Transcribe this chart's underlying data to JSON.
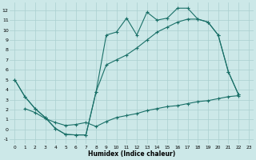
{
  "xlabel": "Humidex (Indice chaleur)",
  "bg_color": "#cce8e8",
  "line_color": "#1a7068",
  "grid_color": "#aacfcf",
  "xlim": [
    -0.5,
    23.5
  ],
  "ylim": [
    -1.5,
    12.8
  ],
  "xticks": [
    0,
    1,
    2,
    3,
    4,
    5,
    6,
    7,
    8,
    9,
    10,
    11,
    12,
    13,
    14,
    15,
    16,
    17,
    18,
    19,
    20,
    21,
    22,
    23
  ],
  "yticks": [
    -1,
    0,
    1,
    2,
    3,
    4,
    5,
    6,
    7,
    8,
    9,
    10,
    11,
    12
  ],
  "curve1_x": [
    0,
    1,
    2,
    3,
    4,
    5,
    6,
    7,
    8,
    9,
    10,
    11,
    12,
    13,
    14,
    15,
    16,
    17,
    18,
    19,
    20,
    21,
    22
  ],
  "curve1_y": [
    5.0,
    3.3,
    2.1,
    1.2,
    0.1,
    -0.5,
    -0.55,
    -0.55,
    3.8,
    9.5,
    9.8,
    11.2,
    9.5,
    11.8,
    11.0,
    11.2,
    12.2,
    12.2,
    11.1,
    10.8,
    9.5,
    5.8,
    3.5
  ],
  "curve2_x": [
    0,
    1,
    2,
    3,
    4,
    5,
    6,
    7,
    8,
    9,
    10,
    11,
    12,
    13,
    14,
    15,
    16,
    17,
    18,
    19,
    20,
    21,
    22
  ],
  "curve2_y": [
    5.0,
    3.3,
    2.1,
    1.2,
    0.1,
    -0.5,
    -0.55,
    -0.55,
    3.8,
    6.5,
    7.0,
    7.5,
    8.2,
    9.0,
    9.8,
    10.3,
    10.8,
    11.1,
    11.1,
    10.8,
    9.5,
    5.8,
    3.5
  ],
  "curve3_x": [
    1,
    2,
    3,
    4,
    5,
    6,
    7,
    8,
    9,
    10,
    11,
    12,
    13,
    14,
    15,
    16,
    17,
    18,
    19,
    20,
    21,
    22
  ],
  "curve3_y": [
    2.1,
    1.7,
    1.1,
    0.7,
    0.4,
    0.5,
    0.7,
    0.3,
    0.8,
    1.2,
    1.4,
    1.6,
    1.9,
    2.1,
    2.3,
    2.4,
    2.6,
    2.8,
    2.9,
    3.1,
    3.3,
    3.4
  ]
}
